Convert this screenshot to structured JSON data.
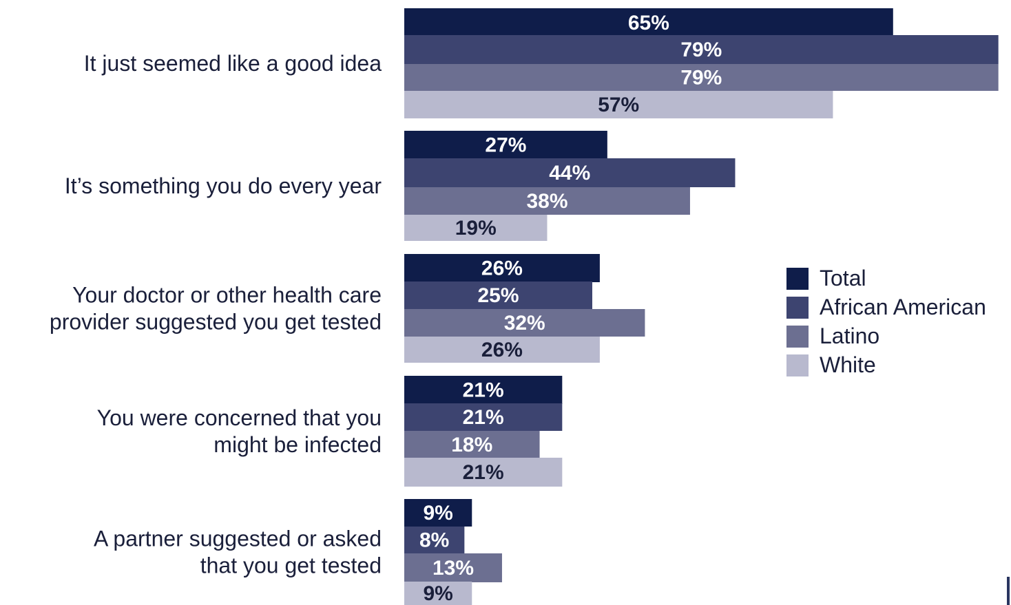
{
  "chart_data": {
    "type": "bar",
    "orientation": "horizontal",
    "categories": [
      [
        "It just seemed like a good idea"
      ],
      [
        "It’s something you do every year"
      ],
      [
        "Your doctor or other health care",
        "provider suggested you get tested"
      ],
      [
        "You were concerned that you",
        "might be infected"
      ],
      [
        "A partner suggested or asked",
        "that you get tested"
      ]
    ],
    "series": [
      {
        "name": "Total",
        "values": [
          65,
          27,
          26,
          21,
          9
        ],
        "color": "#0f1d4a",
        "label_color": "#ffffff"
      },
      {
        "name": "African American",
        "values": [
          79,
          44,
          25,
          21,
          8
        ],
        "color": "#3d4470",
        "label_color": "#ffffff"
      },
      {
        "name": "Latino",
        "values": [
          79,
          38,
          32,
          18,
          13
        ],
        "color": "#6c6f91",
        "label_color": "#ffffff"
      },
      {
        "name": "White",
        "values": [
          57,
          19,
          26,
          21,
          9
        ],
        "color": "#b8b9ce",
        "label_color": "#1a1f3a"
      }
    ],
    "value_suffix": "%",
    "xlim": [
      0,
      80
    ],
    "grid": false,
    "legend_position": "right"
  }
}
